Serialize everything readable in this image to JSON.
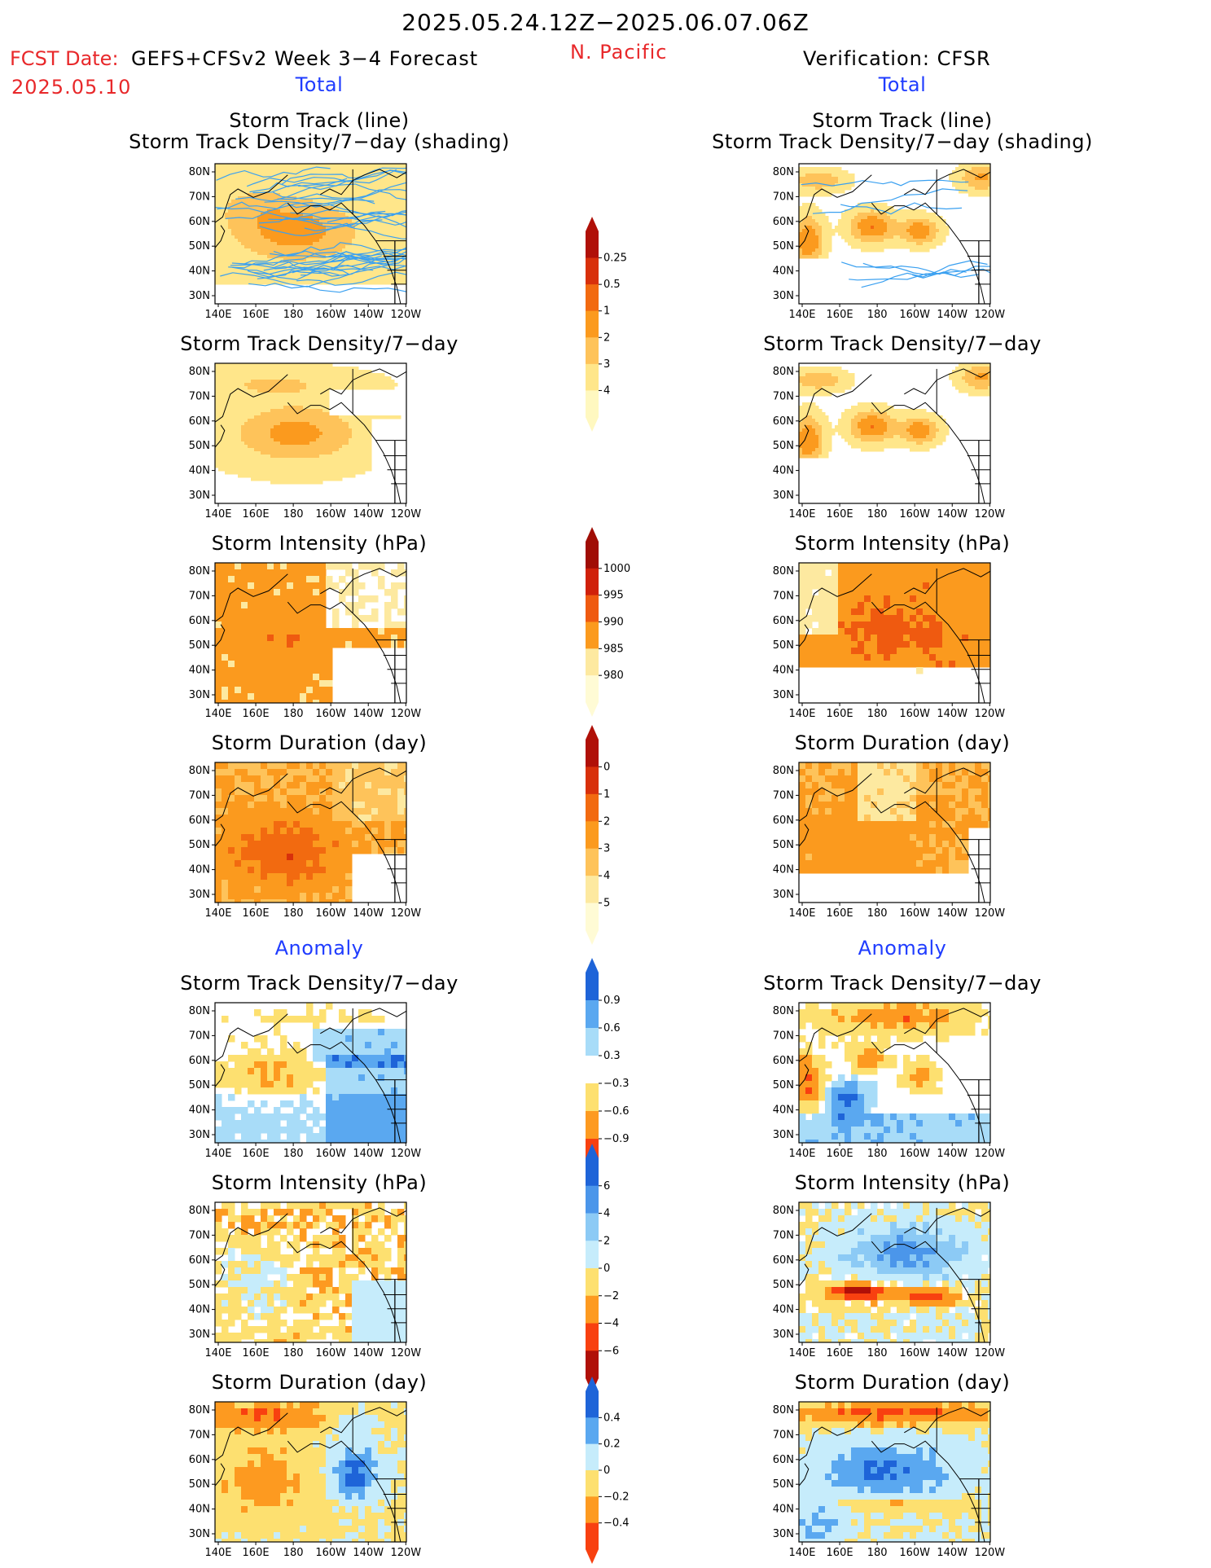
{
  "header": {
    "title": "2025.05.24.12Z−2025.06.07.06Z",
    "fcst_label": "FCST Date:",
    "fcst_model": "GEFS+CFSv2 Week 3−4 Forecast",
    "fcst_date": "2025.05.10",
    "region": "N. Pacific",
    "verification": "Verification: CFSR",
    "left_total": "Total",
    "right_total": "Total",
    "left_anomaly": "Anomaly",
    "right_anomaly": "Anomaly"
  },
  "panel_titles": {
    "track_line": "Storm Track (line)",
    "track_shading": "Storm Track Density/7−day (shading)",
    "density": "Storm Track Density/7−day",
    "intensity": "Storm Intensity (hPa)",
    "duration": "Storm Duration (day)"
  },
  "chart_data": {
    "type": "heatmap",
    "map_domain": {
      "lon_range": [
        "140E",
        "120W"
      ],
      "lat_range": [
        "25N",
        "85N"
      ]
    },
    "x_tick_labels": [
      "140E",
      "160E",
      "180",
      "160W",
      "140W",
      "120W"
    ],
    "y_tick_labels": [
      "80N",
      "70N",
      "60N",
      "50N",
      "40N",
      "30N"
    ],
    "colorbars": [
      {
        "id": "density_total",
        "levels": [
          "0.25",
          "0.5",
          "1",
          "2",
          "3",
          "4"
        ],
        "colors": [
          "#fff8c0",
          "#ffe68a",
          "#fec35a",
          "#fb9a1e",
          "#f26a10",
          "#d8300b",
          "#b01008"
        ]
      },
      {
        "id": "intensity_total",
        "levels": [
          "1000",
          "995",
          "990",
          "985",
          "980"
        ],
        "colors": [
          "#fffbd5",
          "#fde9a0",
          "#fb9a1e",
          "#ef5a10",
          "#d0200a",
          "#a00d05"
        ]
      },
      {
        "id": "duration_total",
        "levels": [
          "0",
          "1",
          "2",
          "3",
          "4",
          "5"
        ],
        "colors": [
          "#fffbd5",
          "#fde9a0",
          "#fec35a",
          "#fb9a1e",
          "#f26a10",
          "#d8300b",
          "#b01008"
        ]
      },
      {
        "id": "density_anom",
        "levels": [
          "0.9",
          "0.6",
          "0.3",
          "−0.3",
          "−0.6",
          "−0.9"
        ],
        "colors": [
          "#f84010",
          "#fd9a20",
          "#fde070",
          "#ffffff",
          "#a8dcf8",
          "#5aa8f0",
          "#1e64d8"
        ]
      },
      {
        "id": "intensity_anom",
        "levels": [
          "6",
          "4",
          "2",
          "0",
          "−2",
          "−4",
          "−6"
        ],
        "colors": [
          "#b01008",
          "#f84010",
          "#fd9a20",
          "#fde070",
          "#c6ecfb",
          "#8ccaf5",
          "#4b96ea",
          "#1e64d8"
        ]
      },
      {
        "id": "duration_anom",
        "levels": [
          "0.4",
          "0.2",
          "0",
          "−0.2",
          "−0.4"
        ],
        "colors": [
          "#f84010",
          "#fd9a20",
          "#fde070",
          "#c6ecfb",
          "#5aa8f0",
          "#1e64d8"
        ]
      }
    ],
    "panels": [
      {
        "id": "fcst-track",
        "column": "forecast",
        "field": "storm track lines + density",
        "lines": "#3aa0f0"
      },
      {
        "id": "fcst-density",
        "column": "forecast",
        "field": "storm track density"
      },
      {
        "id": "fcst-intensity",
        "column": "forecast",
        "field": "storm intensity"
      },
      {
        "id": "fcst-duration",
        "column": "forecast",
        "field": "storm duration"
      },
      {
        "id": "fcst-density-anom",
        "column": "forecast",
        "field": "storm track density anomaly"
      },
      {
        "id": "fcst-intensity-anom",
        "column": "forecast",
        "field": "storm intensity anomaly"
      },
      {
        "id": "fcst-duration-anom",
        "column": "forecast",
        "field": "storm duration anomaly"
      },
      {
        "id": "verif-track",
        "column": "verification",
        "field": "storm track lines + density"
      },
      {
        "id": "verif-density",
        "column": "verification",
        "field": "storm track density"
      },
      {
        "id": "verif-intensity",
        "column": "verification",
        "field": "storm intensity"
      },
      {
        "id": "verif-duration",
        "column": "verification",
        "field": "storm duration"
      },
      {
        "id": "verif-density-anom",
        "column": "verification",
        "field": "storm track density anomaly"
      },
      {
        "id": "verif-intensity-anom",
        "column": "verification",
        "field": "storm intensity anomaly"
      },
      {
        "id": "verif-duration-anom",
        "column": "verification",
        "field": "storm duration anomaly"
      }
    ]
  }
}
